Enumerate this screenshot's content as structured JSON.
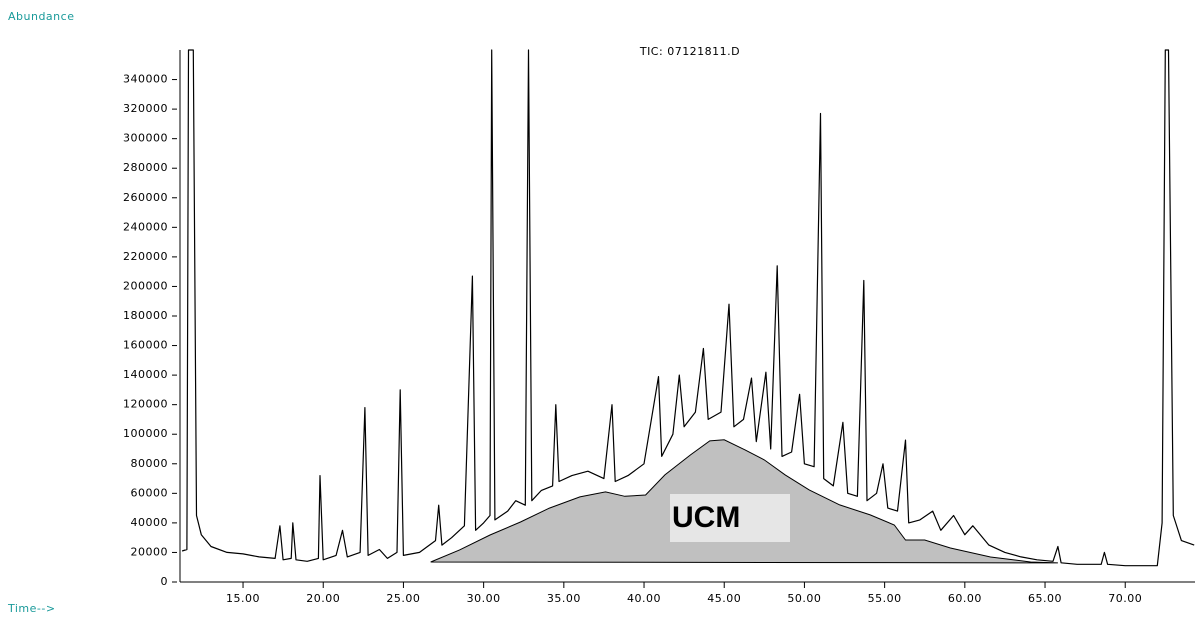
{
  "chart_data": {
    "type": "line",
    "title": "TIC: 07121811.D",
    "y_label": "Abundance",
    "x_label": "Time-->",
    "xlim": [
      11.07,
      74.35
    ],
    "ylim": [
      0,
      360000
    ],
    "xticks": [
      {
        "value": 15,
        "label": "15.00"
      },
      {
        "value": 20,
        "label": "20.00"
      },
      {
        "value": 25,
        "label": "25.00"
      },
      {
        "value": 30,
        "label": "30.00"
      },
      {
        "value": 35,
        "label": "35.00"
      },
      {
        "value": 40,
        "label": "40.00"
      },
      {
        "value": 45,
        "label": "45.00"
      },
      {
        "value": 50,
        "label": "50.00"
      },
      {
        "value": 55,
        "label": "55.00"
      },
      {
        "value": 60,
        "label": "60.00"
      },
      {
        "value": 65,
        "label": "65.00"
      },
      {
        "value": 70,
        "label": "70.00"
      }
    ],
    "yticks": [
      0,
      20000,
      40000,
      60000,
      80000,
      100000,
      120000,
      140000,
      160000,
      180000,
      200000,
      220000,
      240000,
      260000,
      280000,
      300000,
      320000,
      340000
    ],
    "grid": false,
    "series": [
      {
        "type": "line",
        "color": "#000000",
        "x": [
          11.2,
          11.5,
          11.6,
          11.9,
          12.1,
          12.4,
          13.0,
          14.0,
          15.0,
          16.0,
          17.0,
          17.3,
          17.5,
          18.0,
          18.1,
          18.3,
          19.0,
          19.7,
          19.8,
          20.0,
          20.8,
          21.2,
          21.5,
          22.3,
          22.6,
          22.8,
          23.5,
          24.0,
          24.6,
          24.8,
          25.0,
          26.0,
          27.0,
          27.2,
          27.4,
          28.0,
          28.8,
          29.3,
          29.5,
          30.0,
          30.4,
          30.5,
          30.7,
          31.5,
          32.0,
          32.6,
          32.8,
          33.0,
          33.6,
          34.3,
          34.5,
          34.7,
          35.5,
          36.5,
          37.5,
          38.0,
          38.2,
          39.0,
          40.0,
          40.9,
          41.1,
          41.8,
          42.2,
          42.5,
          43.2,
          43.7,
          44.0,
          44.8,
          45.3,
          45.6,
          46.2,
          46.7,
          47.0,
          47.6,
          47.9,
          48.3,
          48.6,
          49.2,
          49.7,
          50.0,
          50.6,
          51.0,
          51.2,
          51.8,
          52.4,
          52.7,
          53.3,
          53.7,
          53.9,
          54.5,
          54.9,
          55.2,
          55.8,
          56.3,
          56.5,
          57.2,
          58.0,
          58.5,
          59.3,
          60.0,
          60.5,
          61.5,
          62.5,
          63.5,
          64.5,
          65.5,
          65.8,
          66.0,
          67.0,
          68.5,
          68.7,
          68.9,
          70.0,
          71.0,
          72.0,
          72.3,
          72.5,
          72.7,
          73.0,
          73.5,
          74.3
        ],
        "values": [
          21000,
          22000,
          360000,
          360000,
          45000,
          32000,
          24000,
          20000,
          19000,
          17000,
          16000,
          38000,
          15000,
          16000,
          40000,
          15000,
          14000,
          16000,
          72000,
          15000,
          18000,
          35000,
          17000,
          20000,
          118000,
          18000,
          22000,
          16000,
          20000,
          130000,
          18000,
          20000,
          28000,
          52000,
          25000,
          30000,
          38000,
          207000,
          35000,
          40000,
          45000,
          360000,
          42000,
          48000,
          55000,
          52000,
          360000,
          55000,
          62000,
          65000,
          120000,
          68000,
          72000,
          75000,
          70000,
          120000,
          68000,
          72000,
          80000,
          139000,
          85000,
          100000,
          140000,
          105000,
          115000,
          158000,
          110000,
          115000,
          188000,
          105000,
          110000,
          138000,
          95000,
          142000,
          90000,
          214000,
          85000,
          88000,
          127000,
          80000,
          78000,
          317000,
          70000,
          65000,
          108000,
          60000,
          58000,
          204000,
          55000,
          60000,
          80000,
          50000,
          48000,
          96000,
          40000,
          42000,
          48000,
          35000,
          45000,
          32000,
          38000,
          25000,
          20000,
          17000,
          15000,
          14000,
          24000,
          13000,
          12000,
          12000,
          20000,
          12000,
          11000,
          11000,
          11000,
          40000,
          360000,
          360000,
          45000,
          28000,
          25000
        ]
      },
      {
        "type": "area",
        "name": "UCM",
        "color": "#c0c0c0",
        "x": [
          26.7,
          28.5,
          30.4,
          32.3,
          34.1,
          36.0,
          37.6,
          38.8,
          40.1,
          41.3,
          42.9,
          44.1,
          45.0,
          46.3,
          47.5,
          48.8,
          50.3,
          52.2,
          54.1,
          55.6,
          56.3,
          57.5,
          59.1,
          61.6,
          64.1,
          65.8
        ],
        "values": [
          13500,
          21700,
          31800,
          40600,
          50000,
          57600,
          61000,
          58000,
          58900,
          72500,
          86000,
          95500,
          96200,
          89400,
          82600,
          72500,
          62300,
          52200,
          45400,
          38600,
          28400,
          28400,
          23000,
          16900,
          13500,
          12900
        ]
      }
    ]
  }
}
